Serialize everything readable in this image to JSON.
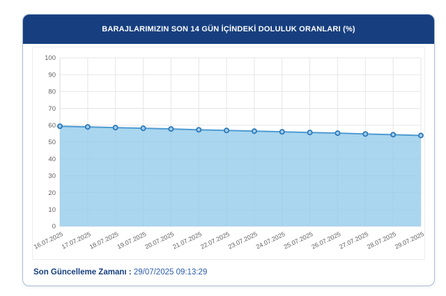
{
  "card": {
    "title": "BARAJLARIMIZIN SON 14 GÜN İÇİNDEKİ DOLULUK ORANLARI (%)"
  },
  "chart_data": {
    "type": "area",
    "title": "BARAJLARIMIZIN SON 14 GÜN İÇİNDEKİ DOLULUK ORANLARI (%)",
    "categories": [
      "16.07.2025",
      "17.07.2025",
      "18.07.2025",
      "19.07.2025",
      "20.07.2025",
      "21.07.2025",
      "22.07.2025",
      "23.07.2025",
      "24.07.2025",
      "25.07.2025",
      "26.07.2025",
      "27.07.2025",
      "28.07.2025",
      "29.07.2025"
    ],
    "values": [
      59.4,
      59.0,
      58.6,
      58.2,
      57.8,
      57.3,
      56.9,
      56.5,
      56.1,
      55.7,
      55.3,
      54.8,
      54.4,
      53.9
    ],
    "xlabel": "",
    "ylabel": "",
    "ylim": [
      0,
      100
    ],
    "yticks": [
      0,
      10,
      20,
      30,
      40,
      50,
      60,
      70,
      80,
      90,
      100
    ],
    "grid": true,
    "legend": false,
    "colors": {
      "line": "#4e9bd2",
      "fill": "#8ec8ea",
      "marker_stroke": "#2e78b8",
      "marker_fill": "#9fd0ee",
      "grid": "#e6e6e6",
      "axis": "#d9d9d9",
      "tick_label": "#606060"
    }
  },
  "footer": {
    "label": "Son Güncelleme Zamanı",
    "separator": ":",
    "value": "29/07/2025 09:13:29"
  }
}
